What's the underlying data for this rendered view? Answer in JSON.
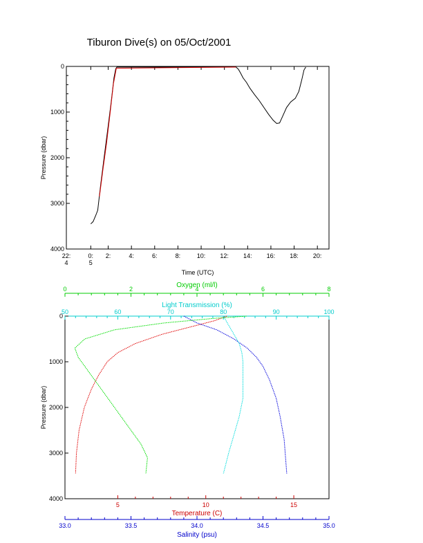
{
  "title": "Tiburon Dive(s) on 05/Oct/2001",
  "chart_data": [
    {
      "type": "line",
      "xlabel": "Time (UTC)",
      "ylabel": "Pressure (dbar)",
      "xlim": [
        22.4,
        21.0
      ],
      "ylim": [
        4000,
        0
      ],
      "xticks": [
        {
          "v": 22.4,
          "line1": "22:",
          "line2": "4"
        },
        {
          "v": 0.5,
          "line1": "0:",
          "line2": "5"
        },
        {
          "v": 2,
          "line1": "2:",
          "line2": ""
        },
        {
          "v": 4,
          "line1": "4:",
          "line2": ""
        },
        {
          "v": 6,
          "line1": "6:",
          "line2": ""
        },
        {
          "v": 8,
          "line1": "8:",
          "line2": ""
        },
        {
          "v": 10,
          "line1": "10:",
          "line2": ""
        },
        {
          "v": 12,
          "line1": "12:",
          "line2": ""
        },
        {
          "v": 14,
          "line1": "14:",
          "line2": ""
        },
        {
          "v": 16,
          "line1": "16:",
          "line2": ""
        },
        {
          "v": 18,
          "line1": "18:",
          "line2": ""
        },
        {
          "v": 20,
          "line1": "20:",
          "line2": ""
        }
      ],
      "yticks": [
        "0",
        "1000",
        "2000",
        "3000",
        "4000"
      ],
      "series": [
        {
          "color": "#000000",
          "points": [
            [
              0.5,
              3450
            ],
            [
              0.7,
              3400
            ],
            [
              0.95,
              3250
            ],
            [
              1.1,
              3150
            ],
            [
              1.35,
              2600
            ],
            [
              1.65,
              2000
            ],
            [
              1.95,
              1400
            ],
            [
              2.25,
              800
            ],
            [
              2.5,
              250
            ],
            [
              2.65,
              50
            ],
            [
              2.75,
              15
            ],
            [
              13.0,
              15
            ],
            [
              13.2,
              60
            ],
            [
              13.4,
              150
            ],
            [
              13.6,
              250
            ],
            [
              13.9,
              350
            ],
            [
              14.2,
              480
            ],
            [
              14.6,
              620
            ],
            [
              15.0,
              750
            ],
            [
              15.4,
              900
            ],
            [
              15.8,
              1050
            ],
            [
              16.2,
              1180
            ],
            [
              16.5,
              1250
            ],
            [
              16.75,
              1240
            ],
            [
              17.0,
              1100
            ],
            [
              17.35,
              900
            ],
            [
              17.7,
              780
            ],
            [
              18.1,
              700
            ],
            [
              18.4,
              550
            ],
            [
              18.65,
              300
            ],
            [
              18.85,
              80
            ],
            [
              19.0,
              15
            ]
          ]
        },
        {
          "color": "#d40000",
          "points": [
            [
              1.25,
              2850
            ],
            [
              1.55,
              2250
            ],
            [
              1.85,
              1700
            ],
            [
              2.15,
              1050
            ],
            [
              2.45,
              380
            ],
            [
              2.7,
              40
            ],
            [
              13.0,
              15
            ]
          ]
        }
      ]
    },
    {
      "type": "scatter",
      "ylabel": "Pressure (dbar)",
      "ylim": [
        4000,
        0
      ],
      "yticks": [
        "0",
        "1000",
        "2000",
        "3000",
        "4000"
      ],
      "axes": [
        {
          "label": "Oxygen (ml/l)",
          "color": "#00cc00",
          "position": "top",
          "range": [
            0,
            8
          ],
          "ticks": [
            "0",
            "2",
            "4",
            "6",
            "8"
          ]
        },
        {
          "label": "Light Transmission (%)",
          "color": "#00cccc",
          "position": "top",
          "range": [
            50,
            100
          ],
          "ticks": [
            "50",
            "60",
            "70",
            "80",
            "90",
            "100"
          ]
        },
        {
          "label": "Temperature (C)",
          "color": "#cc0000",
          "position": "bottom",
          "range": [
            2,
            17
          ],
          "ticks": [
            "5",
            "10",
            "15"
          ]
        },
        {
          "label": "Salinity (psu)",
          "color": "#0000cc",
          "position": "bottom",
          "range": [
            33.0,
            35.0
          ],
          "ticks": [
            "33.0",
            "33.5",
            "34.0",
            "34.5",
            "35.0"
          ]
        }
      ],
      "series": [
        {
          "axis": 2,
          "color": "#e00000",
          "points": [
            [
              11.2,
              0
            ],
            [
              10.5,
              100
            ],
            [
              9.0,
              250
            ],
            [
              7.5,
              400
            ],
            [
              6.0,
              600
            ],
            [
              5.0,
              800
            ],
            [
              4.4,
              1000
            ],
            [
              3.9,
              1300
            ],
            [
              3.5,
              1600
            ],
            [
              3.1,
              2000
            ],
            [
              2.8,
              2500
            ],
            [
              2.65,
              3000
            ],
            [
              2.6,
              3450
            ]
          ]
        },
        {
          "axis": 3,
          "color": "#0000dd",
          "points": [
            [
              33.9,
              0
            ],
            [
              34.0,
              150
            ],
            [
              34.15,
              300
            ],
            [
              34.28,
              500
            ],
            [
              34.38,
              700
            ],
            [
              34.45,
              900
            ],
            [
              34.5,
              1100
            ],
            [
              34.55,
              1400
            ],
            [
              34.6,
              1800
            ],
            [
              34.63,
              2200
            ],
            [
              34.66,
              2700
            ],
            [
              34.68,
              3450
            ]
          ]
        },
        {
          "axis": 0,
          "color": "#00dd00",
          "points": [
            [
              5.5,
              0
            ],
            [
              4.5,
              50
            ],
            [
              3.0,
              150
            ],
            [
              1.5,
              300
            ],
            [
              0.6,
              500
            ],
            [
              0.3,
              700
            ],
            [
              0.4,
              900
            ],
            [
              0.6,
              1100
            ],
            [
              0.9,
              1400
            ],
            [
              1.3,
              1800
            ],
            [
              1.8,
              2300
            ],
            [
              2.3,
              2800
            ],
            [
              2.5,
              3100
            ],
            [
              2.45,
              3450
            ]
          ]
        },
        {
          "axis": 1,
          "color": "#00dddd",
          "points": [
            [
              80,
              0
            ],
            [
              81,
              200
            ],
            [
              82,
              400
            ],
            [
              83,
              600
            ],
            [
              83.5,
              800
            ],
            [
              83.7,
              1000
            ],
            [
              83.7,
              1200
            ],
            [
              83.7,
              1600
            ],
            [
              83.7,
              1800
            ],
            [
              83,
              2200
            ],
            [
              82,
              2600
            ],
            [
              81,
              3000
            ],
            [
              80,
              3450
            ]
          ]
        }
      ]
    }
  ]
}
